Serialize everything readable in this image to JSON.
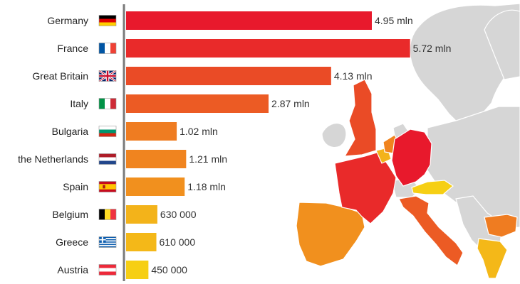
{
  "chart_data": {
    "type": "bar",
    "orientation": "horizontal",
    "title": "",
    "xlabel": "",
    "ylabel": "",
    "grid": false,
    "categories": [
      "Germany",
      "France",
      "Great Britain",
      "Italy",
      "Bulgaria",
      "the Netherlands",
      "Spain",
      "Belgium",
      "Greece",
      "Austria"
    ],
    "values": [
      4950000,
      5720000,
      4130000,
      2870000,
      1020000,
      1210000,
      1180000,
      630000,
      610000,
      450000
    ],
    "value_labels": [
      "4.95 mln",
      "5.72 mln",
      "4.13 mln",
      "2.87 mln",
      "1.02 mln",
      "1.21 mln",
      "1.18 mln",
      "630 000",
      "610 000",
      "450 000"
    ],
    "bar_colors": [
      "#e8192c",
      "#e92a2a",
      "#ea4b26",
      "#ec5b24",
      "#ef7c21",
      "#f0841f",
      "#f1901e",
      "#f3b31a",
      "#f4b818",
      "#f6cf14"
    ],
    "flags": [
      "germany-flag-icon",
      "france-flag-icon",
      "great-britain-flag-icon",
      "italy-flag-icon",
      "bulgaria-flag-icon",
      "netherlands-flag-icon",
      "spain-flag-icon",
      "belgium-flag-icon",
      "greece-flag-icon",
      "austria-flag-icon"
    ]
  },
  "map": {
    "land_color": "#d6d6d6",
    "highlight_colors": {
      "Germany": "#e8192c",
      "France": "#e92a2a",
      "Great Britain": "#ea4b26",
      "Italy": "#ec5b24",
      "Bulgaria": "#ef7c21",
      "the Netherlands": "#f0841f",
      "Spain": "#f1901e",
      "Belgium": "#f3b31a",
      "Greece": "#f4b818",
      "Austria": "#f6cf14"
    }
  }
}
